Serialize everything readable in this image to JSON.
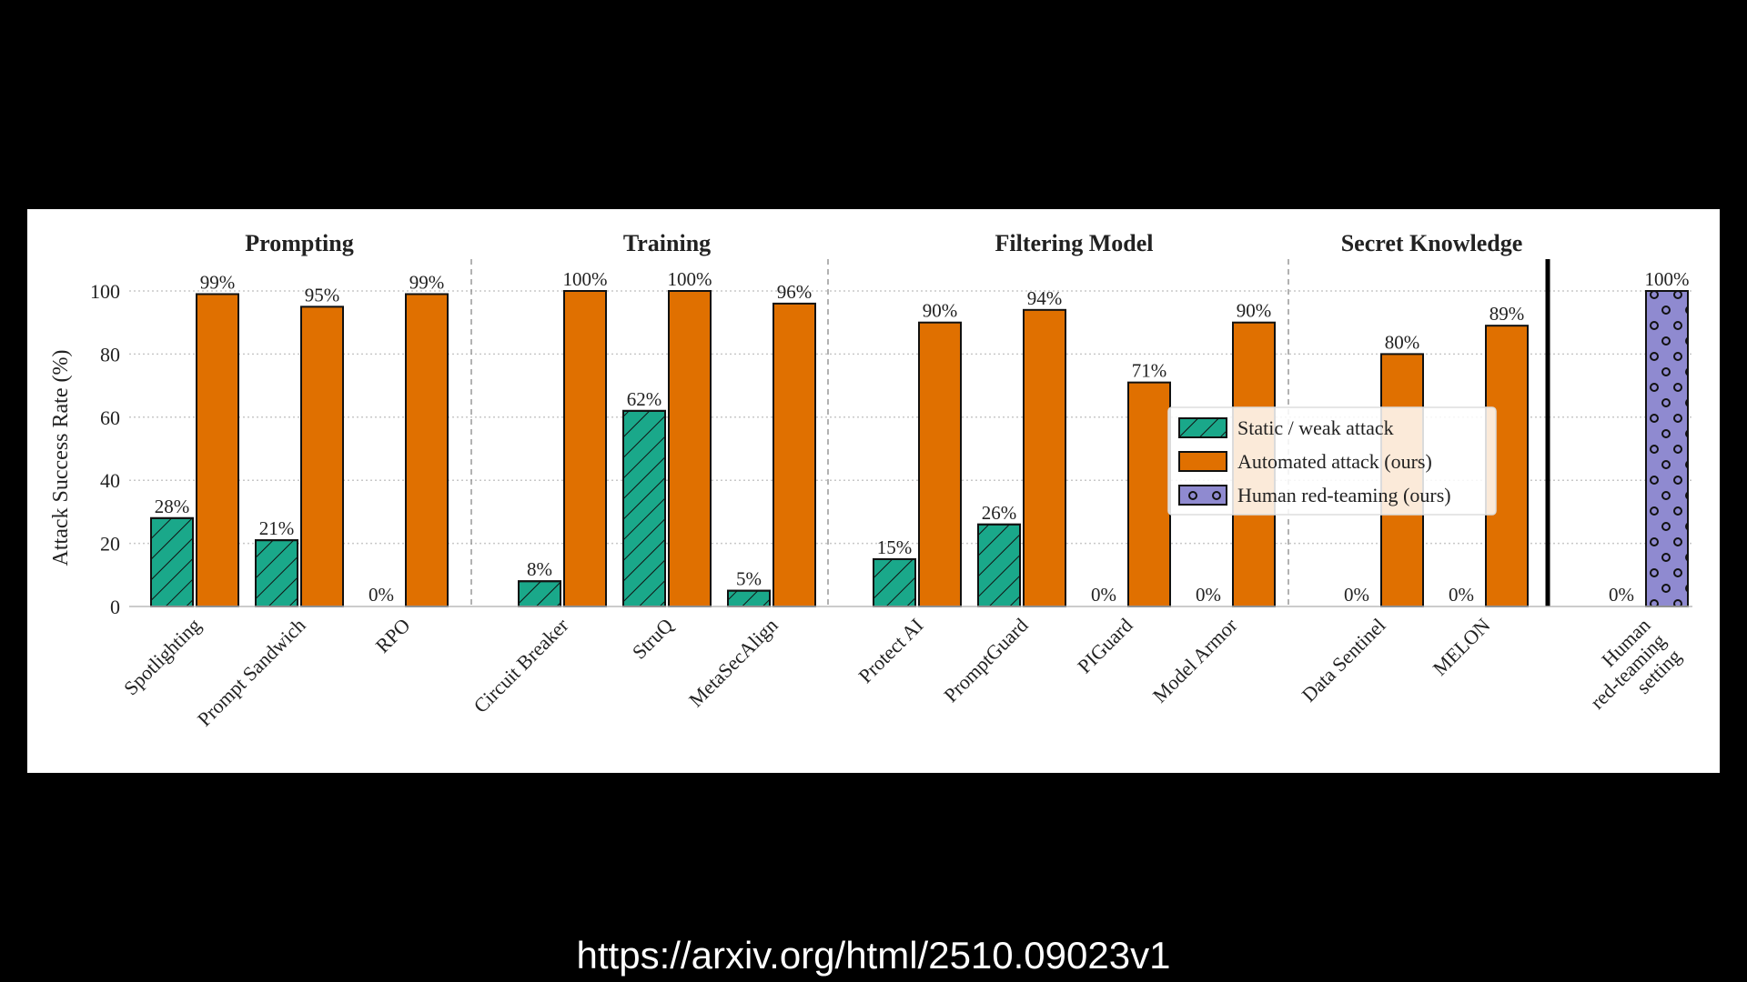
{
  "source_url": "https://arxiv.org/html/2510.09023v1",
  "colors": {
    "static": "#1aa88a",
    "automated": "#e07000",
    "human": "#8f8ad0",
    "bar_edge": "#111111"
  },
  "chart_data": {
    "type": "bar",
    "ylabel": "Attack Success Rate (%)",
    "ylim": [
      0,
      110
    ],
    "yticks": [
      0,
      20,
      40,
      60,
      80,
      100
    ],
    "grid": true,
    "legend_placement": "center-right",
    "groups": [
      {
        "title": "Prompting",
        "categories": [
          "Spotlighting",
          "Prompt Sandwich",
          "RPO"
        ]
      },
      {
        "title": "Training",
        "categories": [
          "Circuit Breaker",
          "StruQ",
          "MetaSecAlign"
        ]
      },
      {
        "title": "Filtering Model",
        "categories": [
          "Protect AI",
          "PromptGuard",
          "PIGuard",
          "Model Armor"
        ]
      },
      {
        "title": "Secret Knowledge",
        "categories": [
          "Data Sentinel",
          "MELON"
        ]
      }
    ],
    "categories": [
      "Spotlighting",
      "Prompt Sandwich",
      "RPO",
      "Circuit Breaker",
      "StruQ",
      "MetaSecAlign",
      "Protect AI",
      "PromptGuard",
      "PIGuard",
      "Model Armor",
      "Data Sentinel",
      "MELON",
      "Human red-teaming setting"
    ],
    "category_labels": [
      [
        "Spotlighting"
      ],
      [
        "Prompt Sandwich"
      ],
      [
        "RPO"
      ],
      [
        "Circuit Breaker"
      ],
      [
        "StruQ"
      ],
      [
        "MetaSecAlign"
      ],
      [
        "Protect AI"
      ],
      [
        "PromptGuard"
      ],
      [
        "PIGuard"
      ],
      [
        "Model Armor"
      ],
      [
        "Data Sentinel"
      ],
      [
        "MELON"
      ],
      [
        "Human",
        "red-teaming",
        "setting"
      ]
    ],
    "series": [
      {
        "name": "Static / weak attack",
        "values": [
          28,
          21,
          0,
          8,
          62,
          5,
          15,
          26,
          0,
          0,
          0,
          0,
          0
        ],
        "labels": [
          "28%",
          "21%",
          "0%",
          "8%",
          "62%",
          "5%",
          "15%",
          "26%",
          "0%",
          "0%",
          "0%",
          "0%",
          "0%"
        ]
      },
      {
        "name": "Automated attack (ours)",
        "values": [
          99,
          95,
          99,
          100,
          100,
          96,
          90,
          94,
          71,
          90,
          80,
          89,
          null
        ],
        "labels": [
          "99%",
          "95%",
          "99%",
          "100%",
          "100%",
          "96%",
          "90%",
          "94%",
          "71%",
          "90%",
          "80%",
          "89%",
          ""
        ]
      },
      {
        "name": "Human red-teaming (ours)",
        "values": [
          null,
          null,
          null,
          null,
          null,
          null,
          null,
          null,
          null,
          null,
          null,
          null,
          100
        ],
        "labels": [
          "",
          "",
          "",
          "",
          "",
          "",
          "",
          "",
          "",
          "",
          "",
          "",
          "100%"
        ]
      }
    ]
  }
}
